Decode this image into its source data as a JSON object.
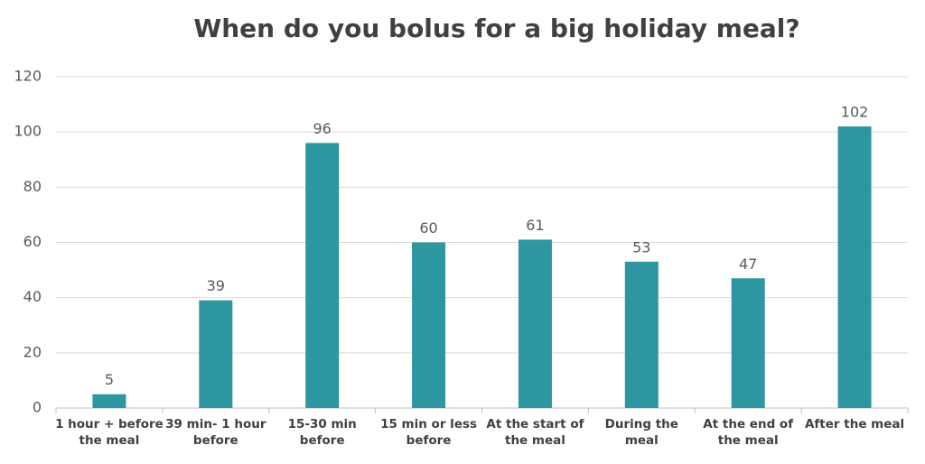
{
  "chart_data": {
    "type": "bar",
    "title": "When do you bolus for a big holiday meal?",
    "categories": [
      "1 hour + before the meal",
      "39 min- 1 hour before",
      "15-30 min before",
      "15 min or less before",
      "At the start of the meal",
      "During the meal",
      "At the end of the meal",
      "After the meal"
    ],
    "values": [
      5,
      39,
      96,
      60,
      61,
      53,
      47,
      102
    ],
    "color": "#2e96a0",
    "ylim": [
      0,
      120
    ],
    "yticks": [
      0,
      20,
      40,
      60,
      80,
      100,
      120
    ],
    "grid": true
  }
}
